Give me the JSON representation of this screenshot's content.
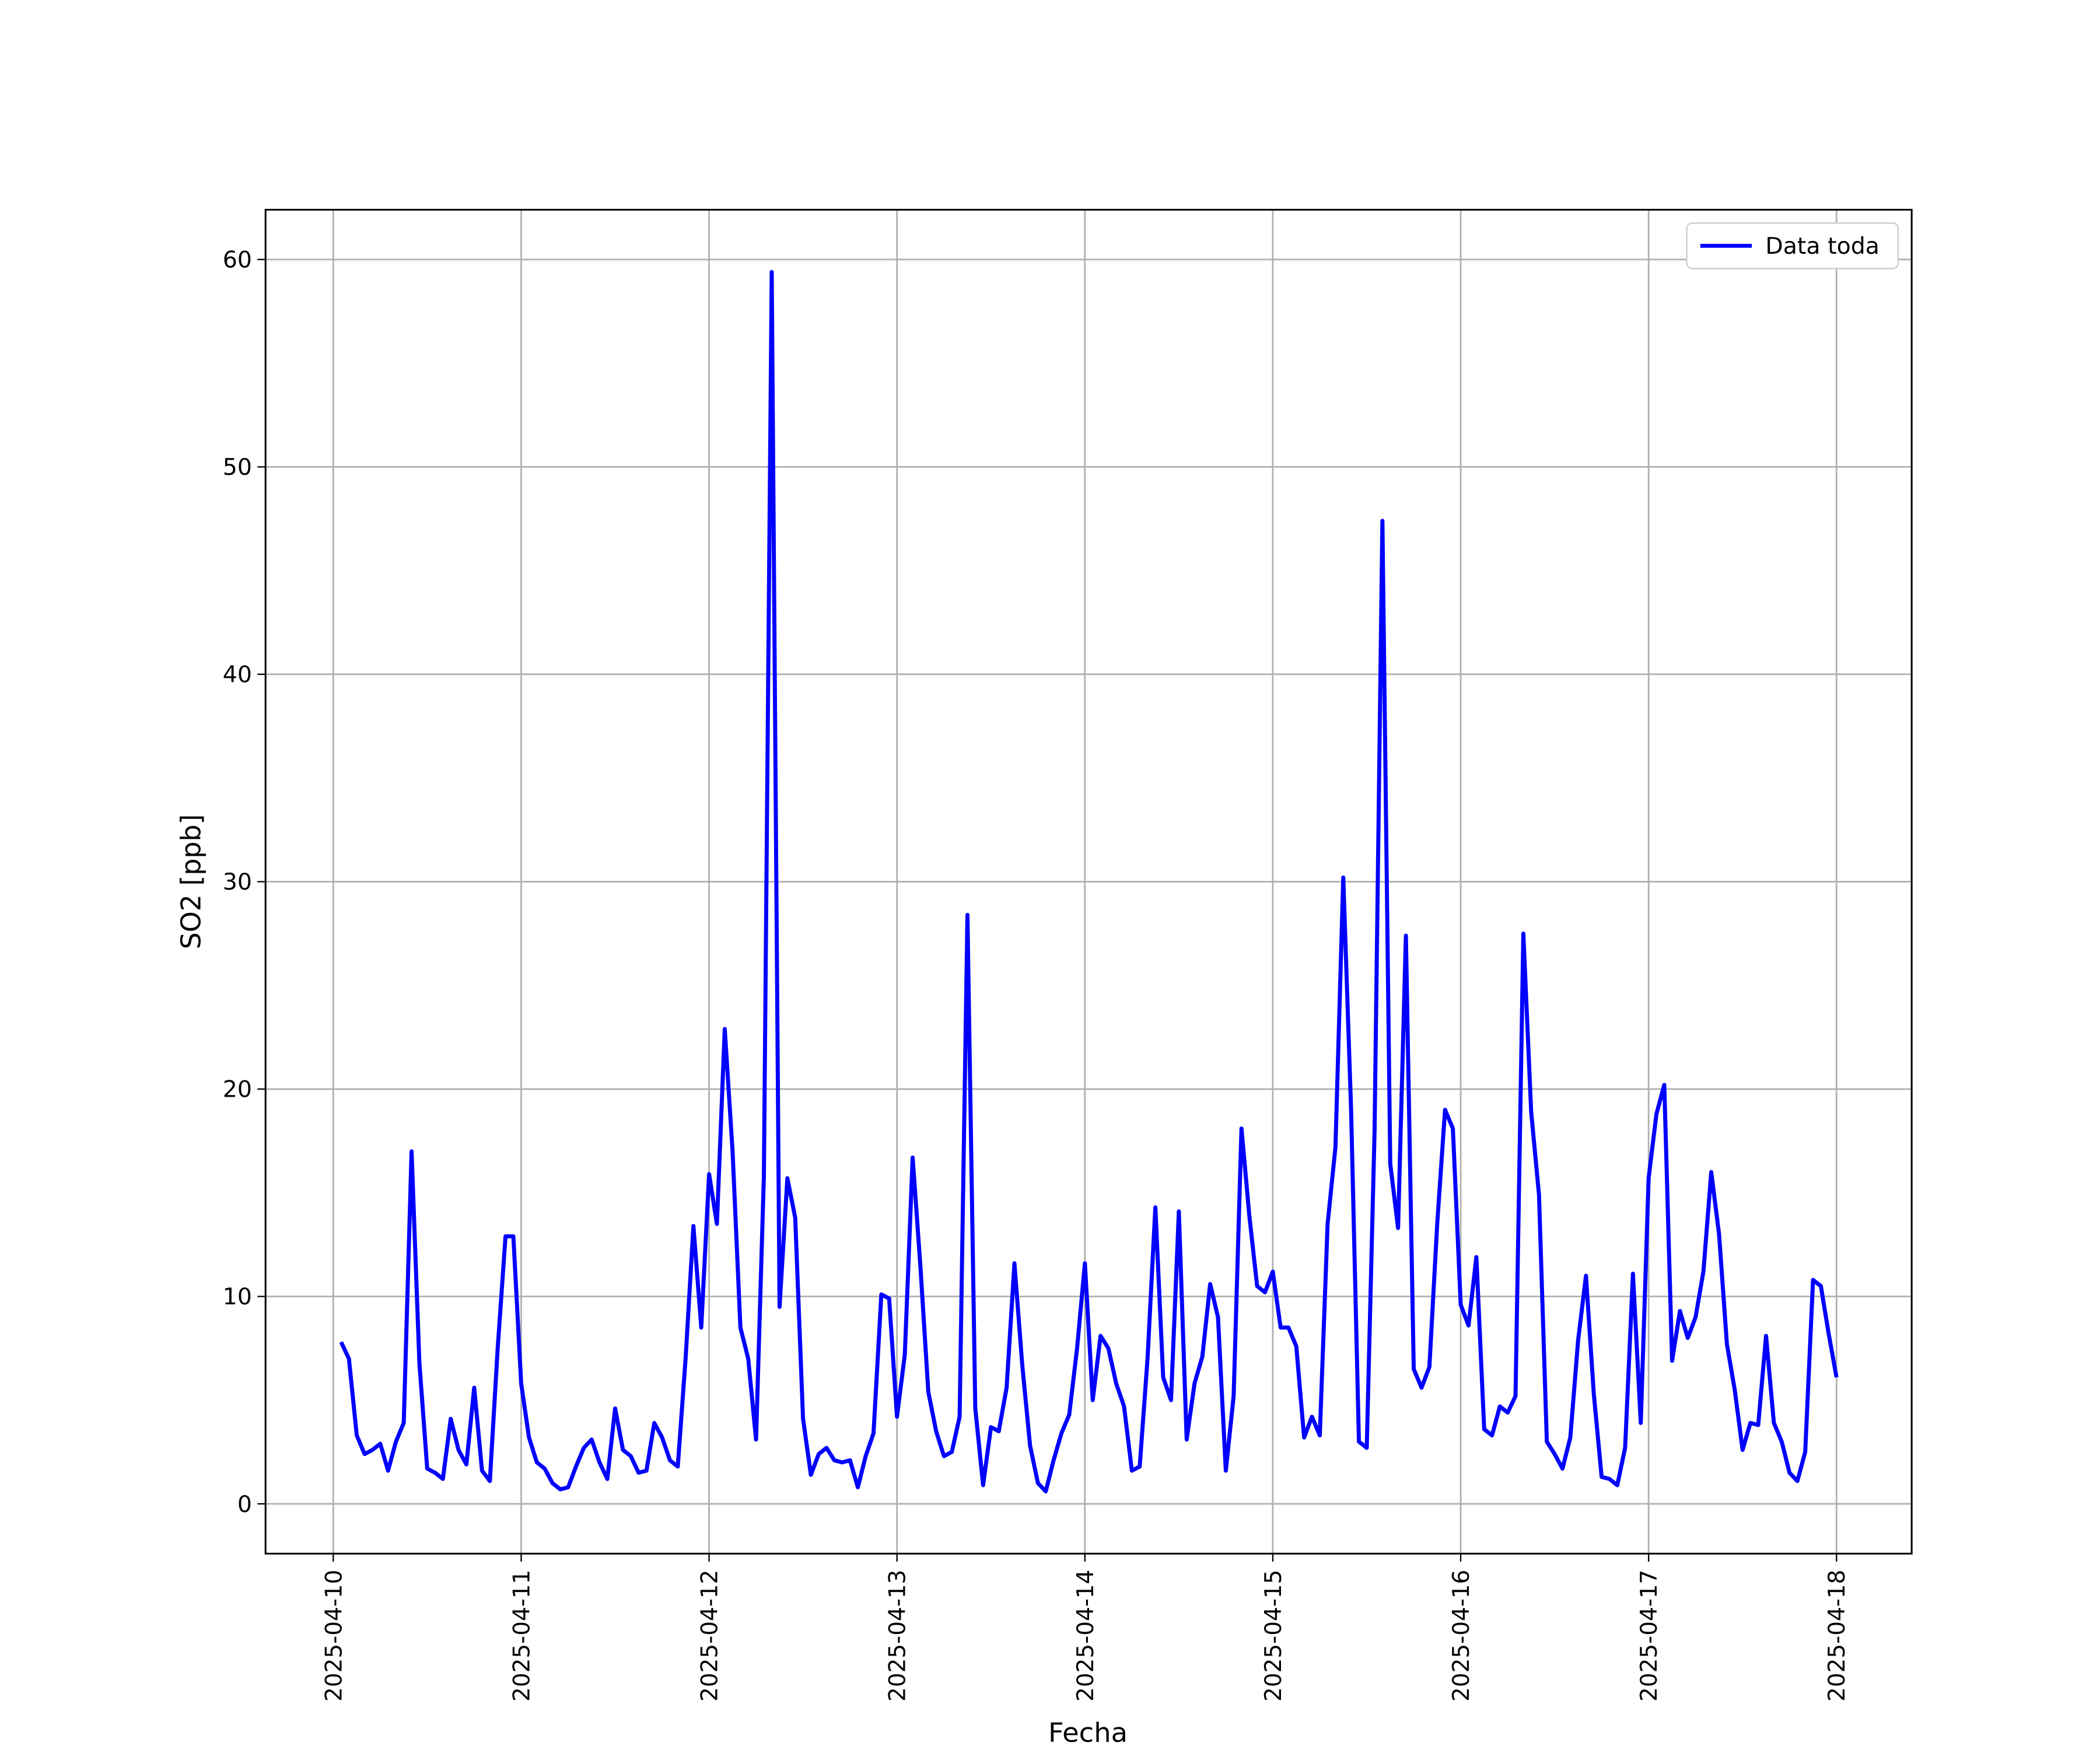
{
  "chart_data": {
    "type": "line",
    "x_label": "Fecha",
    "y_label": "SO2 [ppb]",
    "x": [
      1,
      2,
      3,
      4,
      5,
      6,
      7,
      8,
      9,
      10,
      11,
      12,
      13,
      14,
      15,
      16,
      17,
      18,
      19,
      20,
      21,
      22,
      23,
      24,
      25,
      26,
      27,
      28,
      29,
      30,
      31,
      32,
      33,
      34,
      35,
      36,
      37,
      38,
      39,
      40,
      41,
      42,
      43,
      44,
      45,
      46,
      47,
      48,
      49,
      50,
      51,
      52,
      53,
      54,
      55,
      56,
      57,
      58,
      59,
      60,
      61,
      62,
      63,
      64,
      65,
      66,
      67,
      68,
      69,
      70,
      71,
      72,
      73,
      74,
      75,
      76,
      77,
      78,
      79,
      80,
      81,
      82,
      83,
      84,
      85,
      86,
      87,
      88,
      89,
      90,
      91,
      92,
      93,
      94,
      95,
      96,
      97,
      98,
      99,
      100,
      101,
      102,
      103,
      104,
      105,
      106,
      107,
      108,
      109,
      110,
      111,
      112,
      113,
      114,
      115,
      116,
      117,
      118,
      119,
      120,
      121,
      122,
      123,
      124,
      125,
      126,
      127,
      128,
      129,
      130,
      131,
      132,
      133,
      134,
      135,
      136,
      137,
      138,
      139,
      140,
      141,
      142,
      143,
      144,
      145,
      146,
      147,
      148,
      149,
      150,
      151,
      152,
      153,
      154,
      155,
      156,
      157,
      158,
      159,
      160,
      161,
      162,
      163,
      164,
      165,
      166,
      167,
      168,
      169,
      170,
      171,
      172,
      173,
      174,
      175,
      176,
      177,
      178,
      179,
      180,
      181,
      182,
      183,
      184,
      185,
      186,
      187,
      188,
      189,
      190,
      191,
      192
    ],
    "series": [
      {
        "name": "Data toda",
        "color": "#0000ff",
        "values": [
          7.8,
          7.0,
          3.3,
          2.4,
          2.6,
          2.9,
          1.6,
          3.0,
          3.9,
          17.0,
          6.8,
          1.7,
          1.5,
          1.2,
          4.1,
          2.6,
          1.9,
          5.6,
          1.6,
          1.1,
          7.5,
          12.9,
          12.9,
          5.8,
          3.2,
          2.0,
          1.7,
          1.0,
          0.7,
          0.8,
          1.8,
          2.7,
          3.1,
          2.0,
          1.2,
          4.6,
          2.6,
          2.3,
          1.5,
          1.6,
          3.9,
          3.2,
          2.1,
          1.8,
          7.0,
          13.4,
          8.5,
          15.9,
          13.5,
          22.9,
          17.0,
          8.5,
          7.0,
          3.1,
          15.8,
          59.4,
          9.5,
          15.7,
          13.8,
          4.1,
          1.4,
          2.4,
          2.7,
          2.1,
          2.0,
          2.1,
          0.8,
          2.3,
          3.4,
          10.1,
          9.9,
          4.2,
          7.2,
          16.7,
          11.4,
          5.4,
          3.5,
          2.3,
          2.5,
          4.2,
          28.4,
          4.6,
          0.9,
          3.7,
          3.5,
          5.6,
          11.6,
          6.7,
          2.8,
          1.0,
          0.6,
          2.1,
          3.4,
          4.3,
          7.5,
          11.6,
          5.0,
          8.1,
          7.5,
          5.8,
          4.7,
          1.6,
          1.8,
          7.0,
          14.3,
          6.1,
          5.0,
          14.1,
          3.1,
          5.8,
          7.1,
          10.6,
          9.0,
          1.6,
          5.2,
          18.1,
          13.9,
          10.5,
          10.2,
          11.2,
          8.5,
          8.5,
          7.6,
          3.2,
          4.2,
          3.3,
          13.5,
          17.2,
          30.2,
          19.0,
          3.0,
          2.7,
          18.0,
          47.4,
          16.4,
          13.3,
          27.4,
          6.5,
          5.6,
          6.6,
          13.5,
          19.0,
          18.1,
          9.6,
          8.6,
          11.9,
          3.6,
          3.3,
          4.7,
          4.4,
          5.2,
          27.5,
          18.9,
          14.9,
          3.0,
          2.4,
          1.7,
          3.2,
          7.9,
          11.0,
          5.3,
          1.3,
          1.2,
          0.9,
          2.7,
          11.1,
          3.9,
          15.7,
          18.8,
          20.2,
          6.9,
          9.3,
          8.0,
          9.0,
          11.2,
          16.0,
          13.0,
          7.7,
          5.5,
          2.6,
          3.9,
          3.8,
          8.1,
          3.9,
          3.0,
          1.5,
          1.1,
          2.5,
          10.8,
          10.5,
          8.2,
          6.1
        ]
      }
    ],
    "xlim": [
      -8.65,
      201.6
    ],
    "xticks": [
      {
        "value": 0,
        "label": "2025-04-10"
      },
      {
        "value": 24,
        "label": "2025-04-11"
      },
      {
        "value": 48,
        "label": "2025-04-12"
      },
      {
        "value": 72,
        "label": "2025-04-13"
      },
      {
        "value": 96,
        "label": "2025-04-14"
      },
      {
        "value": 120,
        "label": "2025-04-15"
      },
      {
        "value": 144,
        "label": "2025-04-16"
      },
      {
        "value": 168,
        "label": "2025-04-17"
      },
      {
        "value": 192,
        "label": "2025-04-18"
      }
    ],
    "ylim": [
      -2.4,
      62.4
    ],
    "yticks": [
      0,
      10,
      20,
      30,
      40,
      50,
      60
    ],
    "grid": true,
    "legend": "upper-right"
  }
}
